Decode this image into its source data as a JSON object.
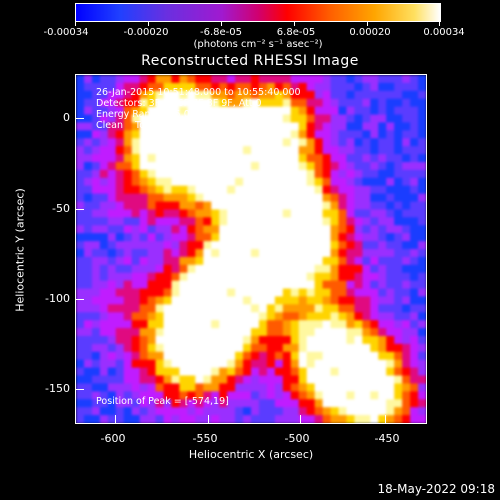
{
  "colorbar": {
    "tick_labels": [
      "-0.00034",
      "-0.00020",
      "-6.8e-05",
      "6.8e-05",
      "0.00020",
      "0.00034"
    ],
    "units": "(photons cm⁻² s⁻¹ asec⁻²)",
    "colormap": [
      "#0000ff",
      "#1a3dff",
      "#5a3cff",
      "#9a2fff",
      "#c01cff",
      "#e00a80",
      "#ff0000",
      "#ff5a00",
      "#ff9a00",
      "#ffd400",
      "#fff8a0",
      "#ffffff"
    ]
  },
  "title": "Reconstructed RHESSI Image",
  "info": {
    "line1": "26-Jan-2015 10:51:48.000 to 10:55:40.000",
    "line2": "Detectors: 3F 5F 6F 7F 8F 9F, Att 0",
    "line3": "Energy Range: 25.0 - 50.0 keV",
    "line4": "Clean    Total counts: 5.33E+03"
  },
  "peak": "Position of Peak = [-574,19]",
  "xaxis": {
    "title": "Heliocentric X (arcsec)",
    "tick_labels": [
      "-600",
      "-550",
      "-500",
      "-450"
    ]
  },
  "yaxis": {
    "title": "Heliocentric Y (arcsec)",
    "tick_labels": [
      "0",
      "-50",
      "-100",
      "-150"
    ]
  },
  "timestamp": "18-May-2022 09:18"
}
